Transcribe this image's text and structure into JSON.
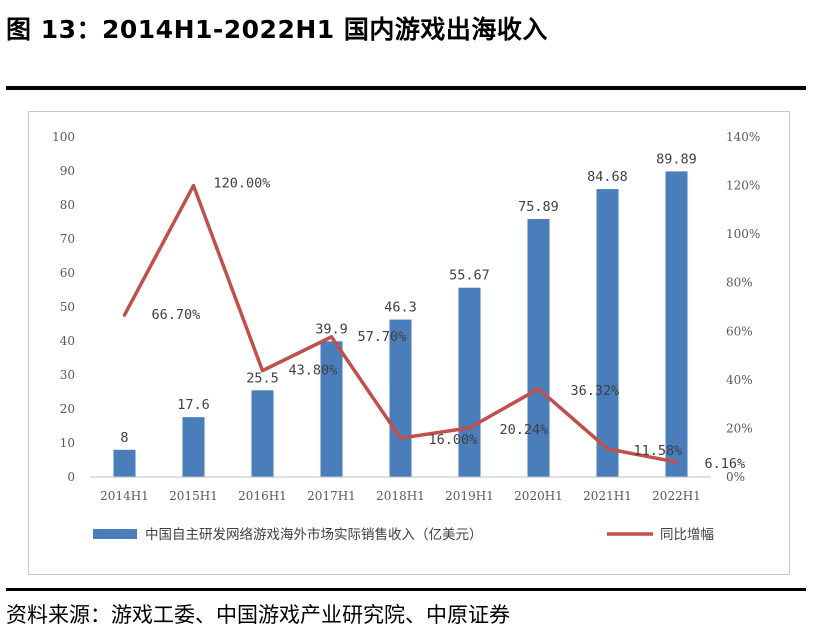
{
  "figure": {
    "title": "图 13：2014H1-2022H1 国内游戏出海收入",
    "source": "资料来源：游戏工委、中国游戏产业研究院、中原证券"
  },
  "chart_data": {
    "type": "bar",
    "categories": [
      "2014H1",
      "2015H1",
      "2016H1",
      "2017H1",
      "2018H1",
      "2019H1",
      "2020H1",
      "2021H1",
      "2022H1"
    ],
    "series": [
      {
        "name": "中国自主研发网络游戏海外市场实际销售收入（亿美元）",
        "type": "bar",
        "axis": "left",
        "color": "#4a7ebb",
        "values": [
          8,
          17.6,
          25.5,
          39.9,
          46.3,
          55.67,
          75.89,
          84.68,
          89.89
        ],
        "labels": [
          "8",
          "17.6",
          "25.5",
          "39.9",
          "46.3",
          "55.67",
          "75.89",
          "84.68",
          "89.89"
        ]
      },
      {
        "name": "同比增幅",
        "type": "line",
        "axis": "right",
        "color": "#c0504d",
        "values": [
          66.7,
          120.0,
          43.8,
          57.7,
          16.0,
          20.24,
          36.32,
          11.58,
          6.16
        ],
        "labels": [
          "66.70%",
          "120.00%",
          "43.80%",
          "57.70%",
          "16.00%",
          "20.24%",
          "36.32%",
          "11.58%",
          "6.16%"
        ]
      }
    ],
    "y_left": {
      "min": 0,
      "max": 100,
      "step": 10,
      "ticks": [
        "0",
        "10",
        "20",
        "30",
        "40",
        "50",
        "60",
        "70",
        "80",
        "90",
        "100"
      ]
    },
    "y_right": {
      "min": 0,
      "max": 140,
      "step": 20,
      "ticks": [
        "0%",
        "20%",
        "40%",
        "60%",
        "80%",
        "100%",
        "120%",
        "140%"
      ]
    },
    "grid": false,
    "legend_position": "bottom"
  }
}
